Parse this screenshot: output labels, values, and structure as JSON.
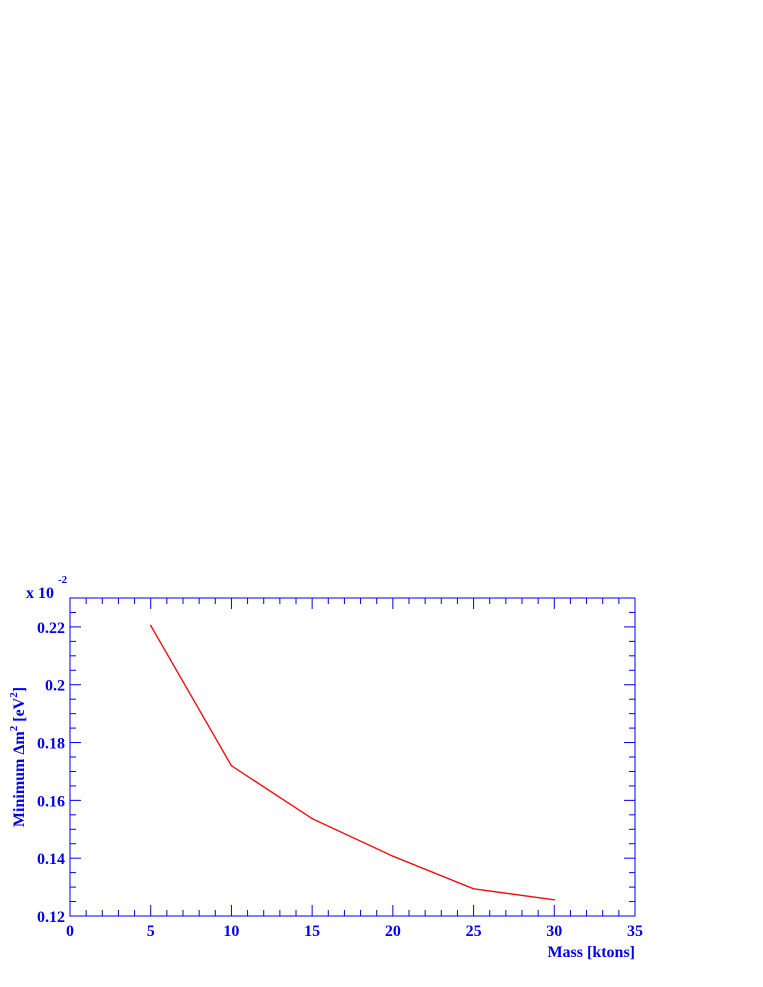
{
  "chart_data": {
    "type": "line",
    "title": "",
    "xlabel": "Mass [ktons]",
    "ylabel": {
      "prefix": "Minimum Δm",
      "prefix_sup": "2",
      "unit_open": " [eV",
      "unit_sup": "2",
      "unit_close": "]"
    },
    "y_multiplier": {
      "base": "x 10",
      "exponent": "-2"
    },
    "xlim": [
      0,
      35
    ],
    "ylim": [
      0.12,
      0.23
    ],
    "x_ticks": [
      {
        "value": 0,
        "label": "0"
      },
      {
        "value": 5,
        "label": "5"
      },
      {
        "value": 10,
        "label": "10"
      },
      {
        "value": 15,
        "label": "15"
      },
      {
        "value": 20,
        "label": "20"
      },
      {
        "value": 25,
        "label": "25"
      },
      {
        "value": 30,
        "label": "30"
      },
      {
        "value": 35,
        "label": "35"
      }
    ],
    "y_ticks": [
      {
        "value": 0.12,
        "label": "0.12"
      },
      {
        "value": 0.14,
        "label": "0.14"
      },
      {
        "value": 0.16,
        "label": "0.16"
      },
      {
        "value": 0.18,
        "label": "0.18"
      },
      {
        "value": 0.2,
        "label": "0.2"
      },
      {
        "value": 0.22,
        "label": "0.22"
      }
    ],
    "grid": false,
    "legend": "none",
    "series": [
      {
        "color": "#ee1111",
        "x": [
          5,
          10,
          15,
          20,
          25,
          30
        ],
        "y": [
          0.2205,
          0.172,
          0.1537,
          0.1407,
          0.1294,
          0.1256
        ]
      }
    ],
    "axis_color": "#0000ee"
  }
}
